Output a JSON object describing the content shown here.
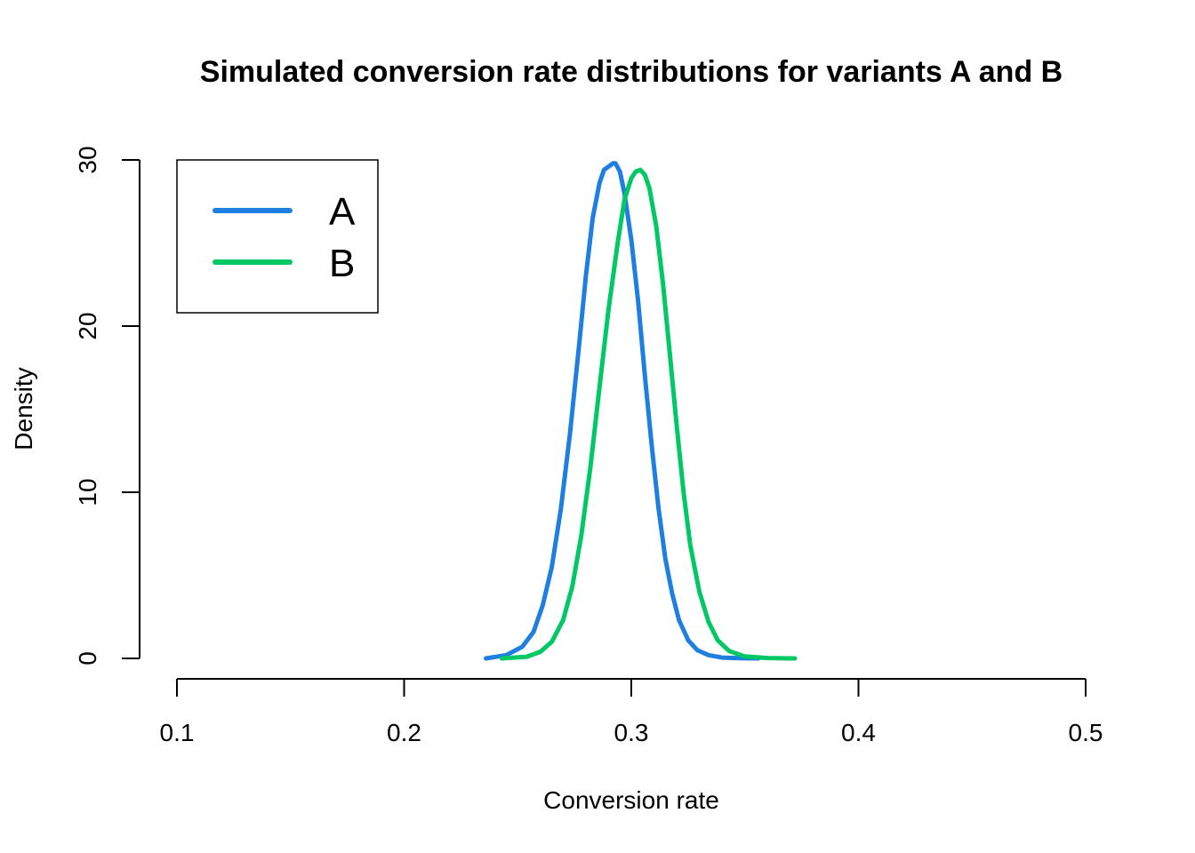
{
  "chart_data": {
    "type": "line",
    "title": "Simulated conversion rate distributions for variants A and B",
    "xlabel": "Conversion rate",
    "ylabel": "Density",
    "xlim": [
      0.1,
      0.5
    ],
    "ylim": [
      0,
      30
    ],
    "x_ticks": [
      0.1,
      0.2,
      0.3,
      0.4,
      0.5
    ],
    "x_tick_labels": [
      "0.1",
      "0.2",
      "0.3",
      "0.4",
      "0.5"
    ],
    "y_ticks": [
      0,
      10,
      20,
      30
    ],
    "y_tick_labels": [
      "0",
      "10",
      "20",
      "30"
    ],
    "grid": false,
    "legend_position": "top-left",
    "series": [
      {
        "name": "A",
        "color": "#1f7fe0",
        "x": [
          0.236,
          0.245,
          0.252,
          0.257,
          0.261,
          0.265,
          0.269,
          0.273,
          0.277,
          0.28,
          0.283,
          0.286,
          0.288,
          0.29,
          0.292,
          0.293,
          0.295,
          0.297,
          0.3,
          0.303,
          0.306,
          0.309,
          0.312,
          0.315,
          0.318,
          0.321,
          0.325,
          0.329,
          0.334,
          0.34,
          0.348,
          0.356
        ],
        "y": [
          0,
          0.2,
          0.7,
          1.6,
          3.2,
          5.5,
          9.0,
          13.5,
          18.8,
          23.0,
          26.5,
          28.6,
          29.4,
          29.6,
          29.8,
          29.8,
          29.3,
          28.0,
          25.2,
          21.5,
          17.0,
          12.8,
          9.0,
          6.0,
          3.9,
          2.3,
          1.1,
          0.5,
          0.2,
          0.05,
          0.01,
          0
        ]
      },
      {
        "name": "B",
        "color": "#00c864",
        "x": [
          0.243,
          0.254,
          0.26,
          0.265,
          0.27,
          0.274,
          0.278,
          0.282,
          0.286,
          0.29,
          0.294,
          0.297,
          0.3,
          0.302,
          0.304,
          0.306,
          0.308,
          0.311,
          0.314,
          0.317,
          0.32,
          0.323,
          0.326,
          0.33,
          0.334,
          0.338,
          0.343,
          0.35,
          0.36,
          0.372
        ],
        "y": [
          0,
          0.1,
          0.4,
          1.0,
          2.3,
          4.3,
          7.4,
          11.5,
          16.3,
          21.0,
          25.0,
          27.6,
          28.9,
          29.3,
          29.4,
          29.1,
          28.3,
          26.0,
          22.5,
          18.3,
          14.0,
          10.0,
          6.8,
          4.0,
          2.2,
          1.1,
          0.45,
          0.12,
          0.02,
          0
        ]
      }
    ]
  }
}
